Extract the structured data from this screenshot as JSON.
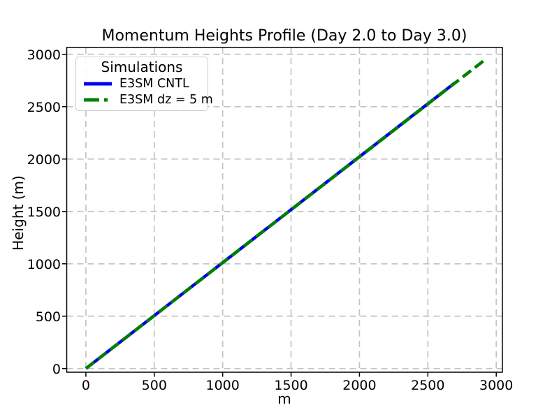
{
  "chart_data": {
    "type": "line",
    "title": "Momentum Heights Profile (Day 2.0 to Day 3.0)",
    "xlabel": "m",
    "ylabel": "Height (m)",
    "xlim": [
      -140,
      3045
    ],
    "ylim": [
      -35,
      3065
    ],
    "x_ticks": [
      0,
      500,
      1000,
      1500,
      2000,
      2500,
      3000
    ],
    "y_ticks": [
      0,
      500,
      1000,
      1500,
      2000,
      2500,
      3000
    ],
    "grid": {
      "visible": true,
      "style": "dashed",
      "color": "#c4c4c4"
    },
    "legend_title": "Simulations",
    "legend_position": "upper left",
    "series": [
      {
        "name": "E3SM CNTL",
        "color": "#0000ee",
        "style": "solid",
        "linewidth": 4.5,
        "x": [
          0,
          2700
        ],
        "y": [
          0,
          2730
        ]
      },
      {
        "name": "E3SM dz = 5 m",
        "color": "#008000",
        "style": "dashed",
        "linewidth": 4.5,
        "x": [
          0,
          2910
        ],
        "y": [
          0,
          2940
        ]
      }
    ]
  }
}
